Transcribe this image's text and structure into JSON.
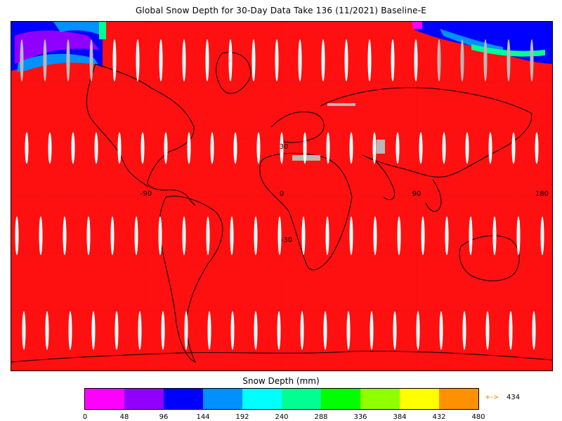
{
  "title": "Global Snow Depth for 30-Day Data Take 136 (11/2021) Baseline-E",
  "map": {
    "background_color": "#ff1010",
    "no_data_color": "#b8b8b8",
    "stripe_color": "#ffffff",
    "coastline_color": "#000000",
    "grid_line_color": "#c81010",
    "graticule_labels": {
      "lon": [
        "-90",
        "0",
        "90",
        "180"
      ],
      "lat": [
        "30",
        "-30"
      ]
    }
  },
  "legend": {
    "title": "Snow Depth (mm)",
    "colors": [
      "#ff00ff",
      "#9000ff",
      "#0000ff",
      "#0090ff",
      "#00ffff",
      "#00ff90",
      "#00ff00",
      "#90ff00",
      "#ffff00",
      "#ff9000"
    ],
    "ticks": [
      "0",
      "48",
      "96",
      "144",
      "192",
      "240",
      "288",
      "336",
      "384",
      "432",
      "480"
    ],
    "max_indicator": "+->",
    "max_value": "434"
  }
}
